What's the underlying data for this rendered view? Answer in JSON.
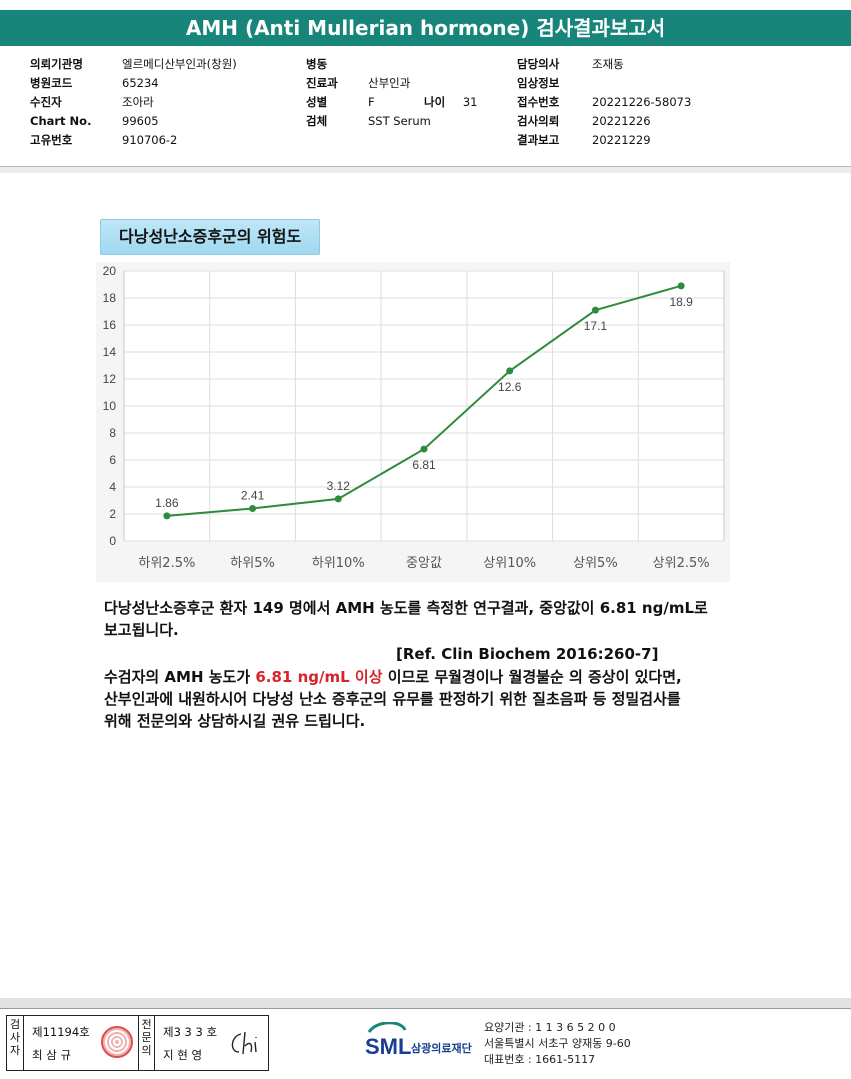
{
  "title": "AMH (Anti Mullerian hormone) 검사결과보고서",
  "header_info": {
    "col1": [
      {
        "label": "의뢰기관명",
        "value": "엘르메디산부인과(창원)"
      },
      {
        "label": "병원코드",
        "value": "65234"
      },
      {
        "label": "수진자",
        "value": "조아라"
      },
      {
        "label": "Chart No.",
        "value": "99605"
      },
      {
        "label": "고유번호",
        "value": "910706-2"
      }
    ],
    "col2": [
      {
        "label": "병동",
        "value": ""
      },
      {
        "label": "진료과",
        "value": "산부인과"
      },
      {
        "label": "성별",
        "value": "F"
      },
      {
        "label": "검체",
        "value": "SST Serum"
      }
    ],
    "age_label": "나이",
    "age_value": "31",
    "col3": [
      {
        "label": "담당의사",
        "value": "조재동"
      },
      {
        "label": "임상정보",
        "value": ""
      },
      {
        "label": "접수번호",
        "value": "20221226-58073"
      },
      {
        "label": "검사의뢰",
        "value": "20221226"
      },
      {
        "label": "결과보고",
        "value": "20221229"
      }
    ]
  },
  "risk_title": "다낭성난소증후군의 위험도",
  "chart_data": {
    "type": "line",
    "categories": [
      "하위2.5%",
      "하위5%",
      "하위10%",
      "중앙값",
      "상위10%",
      "상위5%",
      "상위2.5%"
    ],
    "values": [
      1.86,
      2.41,
      3.12,
      6.81,
      12.6,
      17.1,
      18.9
    ],
    "data_labels": [
      "1.86",
      "2.41",
      "3.12",
      "6.81",
      "12.6",
      "17.1",
      "18.9"
    ],
    "yticks": [
      "0",
      "2",
      "4",
      "6",
      "8",
      "10",
      "12",
      "14",
      "16",
      "18",
      "20"
    ],
    "ylim": [
      0,
      20
    ],
    "grid": true,
    "line_color": "#2e8b3e"
  },
  "paragraph1_line1": "다낭성난소증후군 환자 149 명에서 AMH 농도를 측정한 연구결과, 중앙값이 6.81 ng/mL로",
  "paragraph1_line2": "보고됩니다.",
  "reference": "[Ref. Clin Biochem 2016:260-7]",
  "paragraph2": {
    "prefix": "수검자의 AMH 농도가 ",
    "highlight": "6.81 ng/mL 이상",
    "suffix": " 이므로 무월경이나 월경불순 의 증상이 있다면,",
    "line2": "산부인과에 내원하시어 다낭성 난소 증후군의 유무를 판정하기 위한 질초음파 등 정밀검사를",
    "line3": "위해 전문의와 상담하시길 권유 드립니다.",
    "highlight_color": "#d8232a"
  },
  "footer": {
    "inspector_label": "검사자",
    "inspector_no": "제11194호",
    "inspector_name": "최 삼 규",
    "specialist_label": "전문의",
    "specialist_no": "제3 3 3 호",
    "specialist_name": "지 현 영",
    "logo_text": "SML",
    "logo_subtext": "삼광의료재단",
    "org_code": "요양기관 : 1 1 3 6 5 2 0 0",
    "address": "서울특별시 서초구 양재동 9-60",
    "phone": "대표번호 : 1661-5117"
  }
}
